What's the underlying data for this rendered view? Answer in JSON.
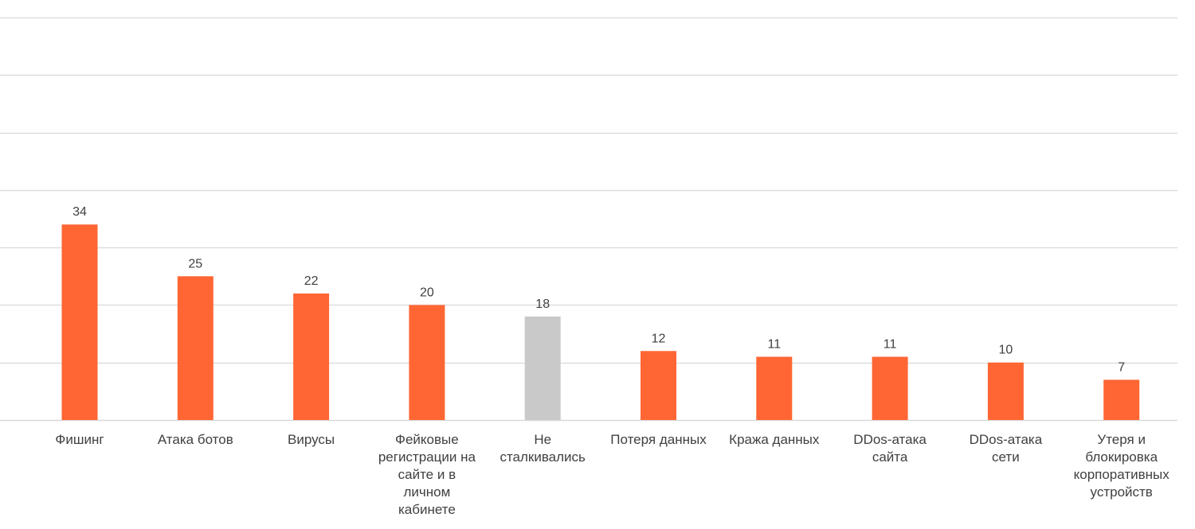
{
  "chart_data": {
    "type": "bar",
    "title": "",
    "xlabel": "",
    "ylabel": "",
    "ylim": [
      0,
      70
    ],
    "grid": true,
    "categories": [
      [
        "Фишинг"
      ],
      [
        "Атака ботов"
      ],
      [
        "Вирусы"
      ],
      [
        "Фейковые",
        "регистрации на",
        "сайте и в",
        "личном",
        "кабинете"
      ],
      [
        "Не",
        "сталкивались"
      ],
      [
        "Потеря данных"
      ],
      [
        "Кража данных"
      ],
      [
        "DDos-атака",
        "сайта"
      ],
      [
        "DDos-атака",
        "сети"
      ],
      [
        "Утеря и",
        "блокировка",
        "корпоративных",
        "устройств"
      ]
    ],
    "values": [
      34,
      25,
      22,
      20,
      18,
      12,
      11,
      11,
      10,
      7
    ],
    "value_labels": [
      "34",
      "25",
      "22",
      "20",
      "18",
      "12",
      "11",
      "11",
      "10",
      "7"
    ],
    "colors": {
      "default": "#FF6633",
      "highlight_index": 4,
      "highlight": "#C9C9C9",
      "grid": "#D9D9D9",
      "label_text": "#404040"
    }
  }
}
